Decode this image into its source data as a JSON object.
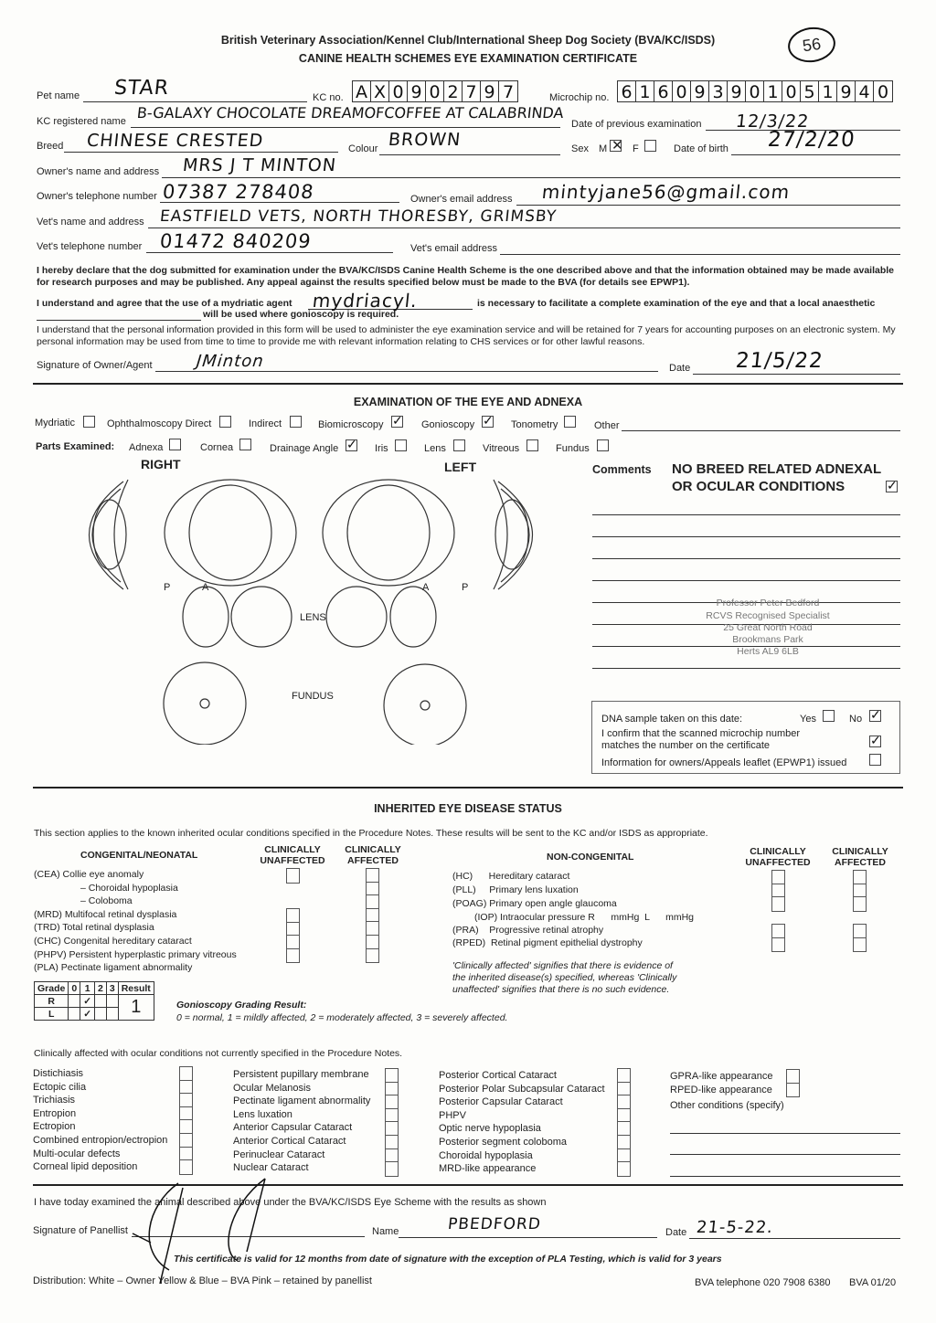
{
  "header": {
    "title": "British Veterinary Association/Kennel Club/International Sheep Dog Society (BVA/KC/ISDS)",
    "subtitle": "CANINE HEALTH SCHEMES EYE EXAMINATION CERTIFICATE",
    "stamp": "56"
  },
  "fields": {
    "pet_name": {
      "label": "Pet name",
      "value": "STAR"
    },
    "kc_no": {
      "label": "KC no.",
      "digits": [
        "A",
        "X",
        "0",
        "9",
        "0",
        "2",
        "7",
        "9",
        "7"
      ]
    },
    "microchip": {
      "label": "Microchip no.",
      "digits": [
        "6",
        "1",
        "6",
        "0",
        "9",
        "3",
        "9",
        "0",
        "1",
        "0",
        "5",
        "1",
        "9",
        "4",
        "0"
      ]
    },
    "kc_registered_name": {
      "label": "KC registered name",
      "value": "B-GALAXY CHOCOLATE DREAMOFCOFFEE AT CALABRINDA"
    },
    "previous_exam": {
      "label": "Date of previous examination",
      "value": "12/3/22"
    },
    "breed": {
      "label": "Breed",
      "value": "CHINESE CRESTED"
    },
    "colour": {
      "label": "Colour",
      "value": "BROWN"
    },
    "sex": {
      "label": "Sex",
      "m": "M",
      "f": "F",
      "selected": "M"
    },
    "dob": {
      "label": "Date of birth",
      "value": "27/2/20"
    },
    "owner_name": {
      "label": "Owner's name and address",
      "value": "MRS J T MINTON"
    },
    "owner_tel": {
      "label": "Owner's telephone number",
      "value": "07387 278408"
    },
    "owner_email": {
      "label": "Owner's email address",
      "value": "mintyjane56@gmail.com"
    },
    "vet_name": {
      "label": "Vet's name and address",
      "value": "EASTFIELD VETS, NORTH THORESBY, GRIMSBY"
    },
    "vet_tel": {
      "label": "Vet's telephone number",
      "value": "01472 840209"
    },
    "vet_email": {
      "label": "Vet's email address",
      "value": ""
    }
  },
  "declaration": {
    "p1": "I hereby declare that the dog submitted for examination under the BVA/KC/ISDS Canine Health Scheme is the one described above and that the information obtained may be made available for research purposes and may be published. Any appeal against the results specified below must be made to the BVA (for details see EPWP1).",
    "p2a": "I understand and agree that the use of a mydriatic agent",
    "mydriatic_value": "mydriacyl.",
    "p2b": "is necessary to facilitate a complete examination of the eye and that a local anaesthetic",
    "p2c": "will be used where gonioscopy is required.",
    "p3": "I understand that the personal information provided in this form will be used to administer the eye examination service and will be retained for 7 years for accounting purposes on an electronic system. My personal information may be used from time to time to provide me with relevant information relating to CHS services or for other lawful reasons.",
    "sig_label": "Signature of Owner/Agent",
    "sig_value": "JMinton",
    "date_label": "Date",
    "date_value": "21/5/22"
  },
  "exam": {
    "title": "EXAMINATION OF THE EYE AND ADNEXA",
    "methods": [
      {
        "label": "Mydriatic",
        "checked": false
      },
      {
        "label": "Ophthalmoscopy Direct",
        "checked": false
      },
      {
        "label": "Indirect",
        "checked": false
      },
      {
        "label": "Biomicroscopy",
        "checked": true
      },
      {
        "label": "Gonioscopy",
        "checked": true
      },
      {
        "label": "Tonometry",
        "checked": false
      }
    ],
    "other_label": "Other",
    "parts_label": "Parts Examined:",
    "parts": [
      {
        "label": "Adnexa",
        "checked": false
      },
      {
        "label": "Cornea",
        "checked": false
      },
      {
        "label": "Drainage Angle",
        "checked": true
      },
      {
        "label": "Iris",
        "checked": false
      },
      {
        "label": "Lens",
        "checked": false
      },
      {
        "label": "Vitreous",
        "checked": false
      },
      {
        "label": "Fundus",
        "checked": false
      }
    ],
    "right": "RIGHT",
    "left": "LEFT",
    "p": "P",
    "a": "A",
    "lens": "LENS",
    "fundus": "FUNDUS"
  },
  "comments": {
    "label": "Comments",
    "line1": "NO BREED RELATED ADNEXAL",
    "line2": "OR OCULAR CONDITIONS",
    "checked": true,
    "stamp": [
      "Professor Peter Bedford",
      "RCVS Recognised Specialist",
      "25 Great North Road",
      "Brookmans Park",
      "Herts AL9 6LB"
    ]
  },
  "dna": {
    "label": "DNA sample taken on this date:",
    "yes": "Yes",
    "no": "No",
    "selected": "No",
    "microchip_confirm": "I confirm that the scanned microchip number matches the number on the certificate",
    "microchip_checked": true,
    "leaflet": "Information for owners/Appeals leaflet (EPWP1) issued",
    "leaflet_checked": false
  },
  "inherited": {
    "title": "INHERITED EYE DISEASE STATUS",
    "intro": "This section applies to the known inherited ocular conditions specified in the Procedure Notes. These results will be sent to the KC and/or ISDS as appropriate.",
    "congenital_title": "CONGENITAL/NEONATAL",
    "col_unaffected": "CLINICALLY UNAFFECTED",
    "col_affected": "CLINICALLY AFFECTED",
    "congenital": [
      "(CEA)  Collie eye anomaly",
      "– Choroidal hypoplasia",
      "– Coloboma",
      "(MRD)  Multifocal retinal dysplasia",
      "(TRD)  Total retinal dysplasia",
      "(CHC)  Congenital hereditary cataract",
      "(PHPV) Persistent hyperplastic primary vitreous",
      "(PLA)  Pectinate ligament abnormality"
    ],
    "noncongenital_title": "NON-CONGENITAL",
    "noncongenital": [
      "(HC)      Hereditary cataract",
      "(PLL)     Primary lens luxation",
      "(POAG) Primary open angle glaucoma",
      "(IOP) Intraocular pressure R      mmHg  L      mmHg",
      "(PRA)    Progressive retinal atrophy",
      "(RPED)  Retinal pigment epithelial dystrophy"
    ],
    "note": [
      "'Clinically affected' signifies that there is evidence of",
      "the inherited disease(s) specified, whereas 'Clinically",
      "unaffected' signifies that there is no such evidence."
    ],
    "grade": {
      "headers": [
        "Grade",
        "0",
        "1",
        "2",
        "3",
        "Result"
      ],
      "rows": [
        "R",
        "L"
      ],
      "result": "1"
    },
    "gonio_title": "Gonioscopy Grading Result:",
    "gonio_scale": "0 = normal, 1 = mildly affected, 2 = moderately affected, 3 = severely affected."
  },
  "other": {
    "intro": "Clinically affected with ocular conditions not currently specified in the Procedure Notes.",
    "col1": [
      "Distichiasis",
      "Ectopic cilia",
      "Trichiasis",
      "Entropion",
      "Ectropion",
      "Combined entropion/ectropion",
      "Multi-ocular defects",
      "Corneal lipid deposition"
    ],
    "col2": [
      "Persistent pupillary membrane",
      "Ocular Melanosis",
      "Pectinate ligament abnormality",
      "Lens luxation",
      "Anterior Capsular Cataract",
      "Anterior Cortical Cataract",
      "Perinuclear Cataract",
      "Nuclear Cataract"
    ],
    "col3": [
      "Posterior Cortical Cataract",
      "Posterior Polar Subcapsular Cataract",
      "Posterior Capsular Cataract",
      "PHPV",
      "Optic nerve hypoplasia",
      "Posterior segment coloboma",
      "Choroidal hypoplasia",
      "MRD-like appearance"
    ],
    "col4": [
      "GPRA-like appearance",
      "RPED-like appearance"
    ],
    "other_specify": "Other conditions (specify)"
  },
  "panellist": {
    "statement": "I have today examined the animal described above under the BVA/KC/ISDS Eye Scheme with the results as shown",
    "sig_label": "Signature of Panellist",
    "name_label": "Name",
    "name_value": "PBEDFORD",
    "date_label": "Date",
    "date_value": "21-5-22.",
    "validity": "This certificate is valid for 12 months from date of signature with the exception of PLA Testing, which is valid for 3 years"
  },
  "footer": {
    "distribution": "Distribution: White – Owner   Yellow & Blue – BVA   Pink – retained by panellist",
    "telephone": "BVA telephone 020 7908 6380",
    "version": "BVA 01/20"
  }
}
